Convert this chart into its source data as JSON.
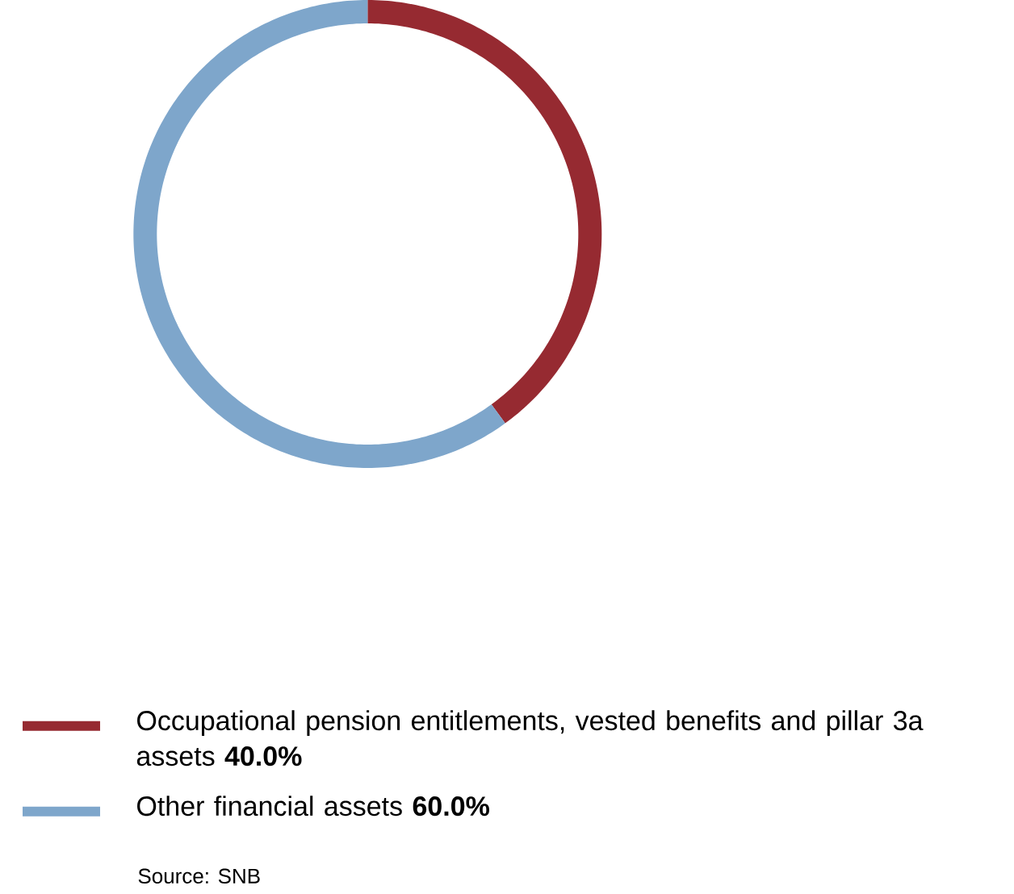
{
  "chart_data": {
    "type": "donut",
    "categories": [
      "Occupational pension entitlements, vested benefits and pillar 3a assets",
      "Other financial assets"
    ],
    "values": [
      40,
      60
    ],
    "colors": [
      "#962a31",
      "#7ea6cb"
    ],
    "value_labels": [
      "40.0%",
      "60.0%"
    ],
    "legend": "bottom",
    "annotations": [
      "Source: SNB"
    ]
  }
}
